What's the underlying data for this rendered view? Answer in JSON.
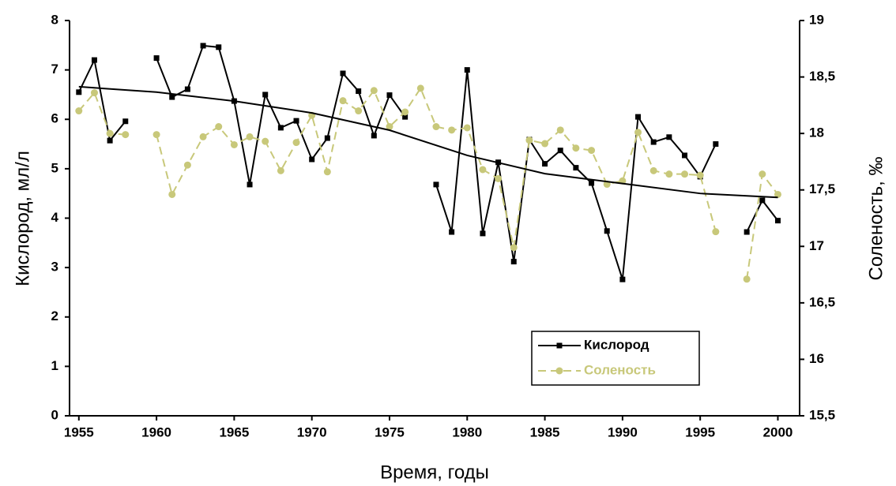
{
  "chart_data": {
    "type": "line",
    "x_label": "Время, годы",
    "y_label": "Кислород, мл/л",
    "y2_label": "Соленость, ‰",
    "xlim": [
      1954.4,
      2001.4
    ],
    "xticks": [
      1955,
      1960,
      1965,
      1970,
      1975,
      1980,
      1985,
      1990,
      1995,
      2000
    ],
    "ylim": [
      0,
      8
    ],
    "yticks": [
      0,
      1,
      2,
      3,
      4,
      5,
      6,
      7,
      8
    ],
    "y2lim": [
      15.5,
      19
    ],
    "y2ticks": [
      {
        "value": 15.5,
        "label": "15,5"
      },
      16,
      {
        "value": 16.5,
        "label": "16,5"
      },
      17,
      {
        "value": 17.5,
        "label": "17,5"
      },
      18,
      {
        "value": 18.5,
        "label": "18,5"
      },
      19
    ],
    "legend": "lower right",
    "x": [
      1955,
      1956,
      1957,
      1958,
      1959,
      1960,
      1961,
      1962,
      1963,
      1964,
      1965,
      1966,
      1967,
      1968,
      1969,
      1970,
      1971,
      1972,
      1973,
      1974,
      1975,
      1976,
      1977,
      1978,
      1979,
      1980,
      1981,
      1982,
      1983,
      1984,
      1985,
      1986,
      1987,
      1988,
      1989,
      1990,
      1991,
      1992,
      1993,
      1994,
      1995,
      1996,
      1997,
      1998,
      1999,
      2000
    ],
    "series": [
      {
        "name": "Кислород",
        "color": "#000000",
        "marker": "square",
        "values": [
          6.55,
          7.2,
          5.57,
          5.96,
          null,
          7.24,
          6.45,
          6.61,
          7.49,
          7.46,
          6.37,
          4.68,
          6.5,
          5.83,
          5.97,
          5.19,
          5.62,
          6.93,
          6.57,
          5.67,
          6.49,
          6.05,
          null,
          4.68,
          3.72,
          7.0,
          3.69,
          5.13,
          3.12,
          5.59,
          5.1,
          5.37,
          5.02,
          4.71,
          3.74,
          2.76,
          6.05,
          5.54,
          5.64,
          5.27,
          4.84,
          5.5,
          null,
          3.72,
          4.36,
          3.95
        ]
      },
      {
        "name": "Соленость",
        "color": "#c8c87a",
        "marker": "circle",
        "dashed": true,
        "axis": "y2",
        "values": [
          18.2,
          18.36,
          18.0,
          17.99,
          null,
          17.99,
          17.46,
          17.72,
          17.97,
          18.06,
          17.9,
          17.97,
          17.93,
          17.67,
          17.92,
          18.16,
          17.66,
          18.29,
          18.2,
          18.38,
          18.06,
          18.19,
          18.4,
          18.06,
          18.03,
          18.05,
          17.68,
          17.6,
          16.99,
          17.94,
          17.91,
          18.03,
          17.87,
          17.85,
          17.55,
          17.58,
          18.01,
          17.67,
          17.64,
          17.64,
          17.63,
          17.13,
          null,
          16.71,
          17.64,
          17.46
        ]
      },
      {
        "color": "#000000",
        "marker": "none",
        "x": [
          1955,
          1960,
          1965,
          1970,
          1975,
          1980,
          1985,
          1990,
          1995,
          2000
        ],
        "values": [
          6.66,
          6.55,
          6.37,
          6.13,
          5.78,
          5.27,
          4.9,
          4.7,
          4.5,
          4.42
        ]
      }
    ]
  }
}
